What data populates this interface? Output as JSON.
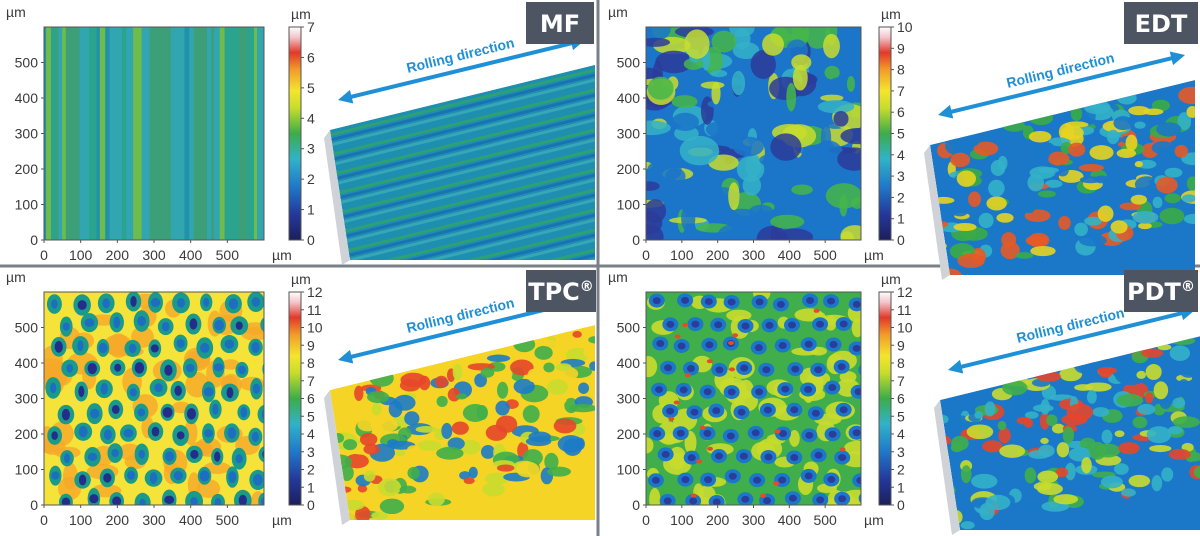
{
  "panels": [
    {
      "title": "MF",
      "superscript": "",
      "unit": "µm",
      "x_ticks": [
        "0",
        "100",
        "200",
        "300",
        "400",
        "500"
      ],
      "y_ticks": [
        "0",
        "100",
        "200",
        "300",
        "400",
        "500"
      ],
      "scale_ticks": [
        "0",
        "1",
        "2",
        "3",
        "4",
        "5",
        "6",
        "7"
      ],
      "scale_max": 7,
      "rolling_label": "Rolling direction",
      "texture": "stripes",
      "heatmap_colors": [
        "#2aa38f",
        "#1e8fb0",
        "#34a7b6",
        "#3f9f74",
        "#7bbf3f"
      ],
      "surface_colors": [
        "#1e8fb0",
        "#2fa36d",
        "#1a6fb5",
        "#3aa9b8"
      ]
    },
    {
      "title": "EDT",
      "superscript": "",
      "unit": "µm",
      "x_ticks": [
        "0",
        "100",
        "200",
        "300",
        "400",
        "500"
      ],
      "y_ticks": [
        "0",
        "100",
        "200",
        "300",
        "400",
        "500"
      ],
      "scale_ticks": [
        "0",
        "1",
        "2",
        "3",
        "4",
        "5",
        "6",
        "7",
        "8",
        "9",
        "10"
      ],
      "scale_max": 10,
      "rolling_label": "Rolling direction",
      "texture": "blotches",
      "heatmap_colors": [
        "#1b75c9",
        "#2c3b9a",
        "#34b1c8",
        "#45b649",
        "#c8dd2e"
      ],
      "surface_colors": [
        "#1b78c8",
        "#34b1c8",
        "#3bab46",
        "#e7d320",
        "#e45a27"
      ]
    },
    {
      "title": "TPC",
      "superscript": "®",
      "unit": "µm",
      "x_ticks": [
        "0",
        "100",
        "200",
        "300",
        "400",
        "500"
      ],
      "y_ticks": [
        "0",
        "100",
        "200",
        "300",
        "400",
        "500"
      ],
      "scale_ticks": [
        "0",
        "1",
        "2",
        "3",
        "4",
        "5",
        "6",
        "7",
        "8",
        "9",
        "10",
        "11",
        "12"
      ],
      "scale_max": 12,
      "rolling_label": "Rolling direction",
      "texture": "craters",
      "heatmap_colors": [
        "#f6e33a",
        "#f6a829",
        "#1a9a8a",
        "#1d6ec0",
        "#242e8a"
      ],
      "surface_colors": [
        "#f5d426",
        "#e7462a",
        "#3fae4b",
        "#1c7bc8",
        "#c9dc2d"
      ]
    },
    {
      "title": "PDT",
      "superscript": "®",
      "unit": "µm",
      "x_ticks": [
        "0",
        "100",
        "200",
        "300",
        "400",
        "500"
      ],
      "y_ticks": [
        "0",
        "100",
        "200",
        "300",
        "400",
        "500"
      ],
      "scale_ticks": [
        "0",
        "1",
        "2",
        "3",
        "4",
        "5",
        "6",
        "7",
        "8",
        "9",
        "10",
        "11",
        "12"
      ],
      "scale_max": 12,
      "rolling_label": "Rolling direction",
      "texture": "cells",
      "heatmap_colors": [
        "#3fae4b",
        "#c9dc2d",
        "#1b78c8",
        "#2a3d9c",
        "#e74b26"
      ],
      "surface_colors": [
        "#1b78c8",
        "#3fae4b",
        "#c9dc2d",
        "#e7462a",
        "#34b1c8"
      ]
    }
  ],
  "colors": {
    "title_bg": "#4c5561",
    "title_fg": "#ffffff",
    "arrow": "#1f8fd6",
    "divider": "#7a8088",
    "axis_text": "#3a3a3a"
  }
}
